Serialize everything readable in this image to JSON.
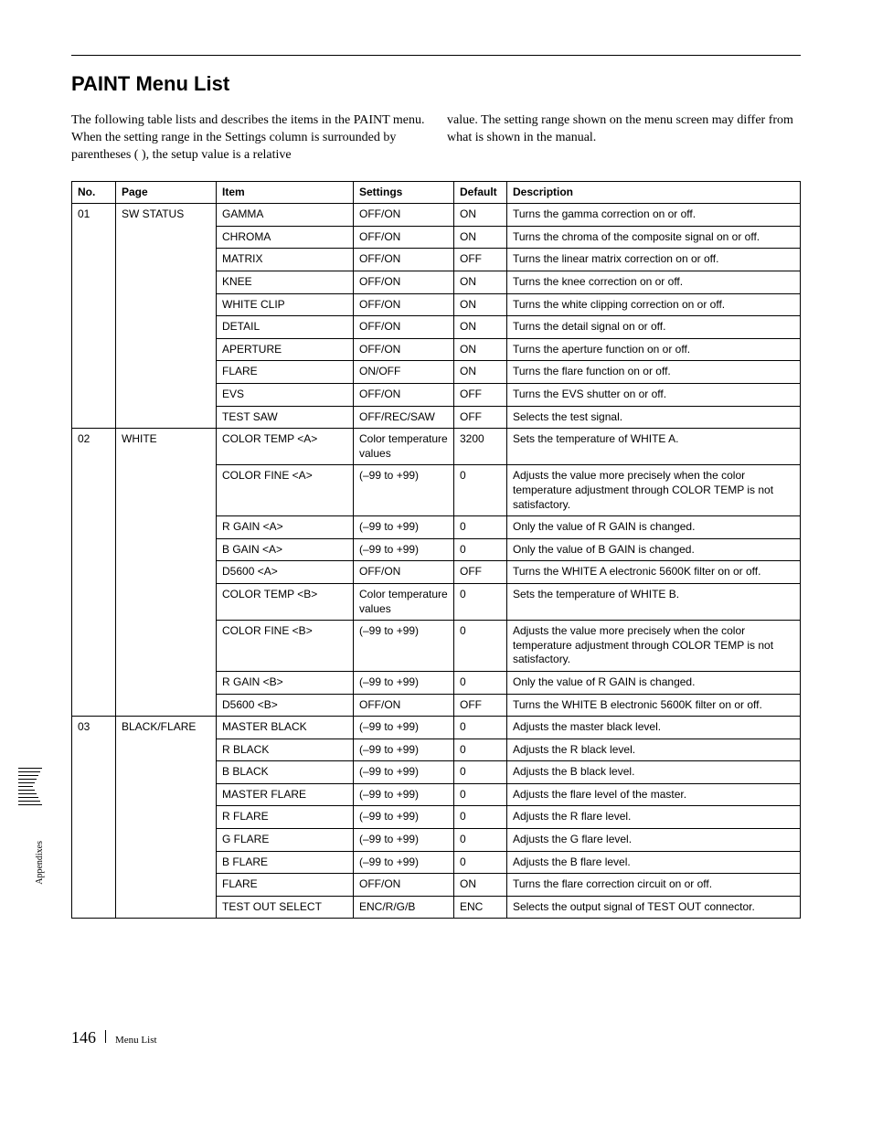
{
  "title": "PAINT Menu List",
  "intro": {
    "left": "The following table lists and describes the items in the PAINT menu.\nWhen the setting range in the Settings column is surrounded by parentheses ( ), the setup value is a relative",
    "right": "value. The setting range shown on the menu screen may differ from what is shown in the manual."
  },
  "headers": [
    "No.",
    "Page",
    "Item",
    "Settings",
    "Default",
    "Description"
  ],
  "groups": [
    {
      "no": "01",
      "page": "SW STATUS",
      "rows": [
        {
          "item": "GAMMA",
          "settings": "OFF/ON",
          "default": "ON",
          "desc": "Turns the gamma correction on or off."
        },
        {
          "item": "CHROMA",
          "settings": "OFF/ON",
          "default": "ON",
          "desc": "Turns the chroma of the composite signal on or off."
        },
        {
          "item": "MATRIX",
          "settings": "OFF/ON",
          "default": "OFF",
          "desc": "Turns the linear matrix correction on or off."
        },
        {
          "item": "KNEE",
          "settings": "OFF/ON",
          "default": "ON",
          "desc": "Turns the knee correction on or off."
        },
        {
          "item": "WHITE CLIP",
          "settings": "OFF/ON",
          "default": "ON",
          "desc": "Turns the white clipping correction on or off."
        },
        {
          "item": "DETAIL",
          "settings": "OFF/ON",
          "default": "ON",
          "desc": "Turns the detail signal on or off."
        },
        {
          "item": "APERTURE",
          "settings": "OFF/ON",
          "default": "ON",
          "desc": "Turns the aperture function on or off."
        },
        {
          "item": "FLARE",
          "settings": "ON/OFF",
          "default": "ON",
          "desc": "Turns the flare function on or off."
        },
        {
          "item": "EVS",
          "settings": "OFF/ON",
          "default": "OFF",
          "desc": "Turns the EVS shutter on or off."
        },
        {
          "item": "TEST SAW",
          "settings": "OFF/REC/SAW",
          "default": "OFF",
          "desc": "Selects the test signal."
        }
      ]
    },
    {
      "no": "02",
      "page": "WHITE",
      "rows": [
        {
          "item": "COLOR TEMP <A>",
          "settings": "Color temperature values",
          "default": "3200",
          "desc": "Sets the temperature of WHITE A."
        },
        {
          "item": "COLOR FINE <A>",
          "settings": "(–99 to +99)",
          "default": "0",
          "desc": "Adjusts the value more precisely when the color temperature adjustment through COLOR TEMP is not satisfactory."
        },
        {
          "item": "R GAIN <A>",
          "settings": "(–99 to +99)",
          "default": "0",
          "desc": "Only the value of R GAIN is changed."
        },
        {
          "item": "B GAIN <A>",
          "settings": "(–99 to +99)",
          "default": "0",
          "desc": "Only the value of B GAIN is changed."
        },
        {
          "item": "D5600 <A>",
          "settings": "OFF/ON",
          "default": "OFF",
          "desc": "Turns the WHITE A electronic 5600K filter on or off."
        },
        {
          "item": "COLOR TEMP <B>",
          "settings": "Color temperature values",
          "default": "0",
          "desc": "Sets the temperature of WHITE B."
        },
        {
          "item": "COLOR FINE <B>",
          "settings": "(–99 to +99)",
          "default": "0",
          "desc": "Adjusts the value more precisely when the color temperature adjustment through COLOR TEMP is not satisfactory."
        },
        {
          "item": "R GAIN <B>",
          "settings": "(–99 to +99)",
          "default": "0",
          "desc": "Only the value of R GAIN is changed."
        },
        {
          "item": "D5600 <B>",
          "settings": "OFF/ON",
          "default": "OFF",
          "desc": "Turns the WHITE B electronic 5600K filter on or off."
        }
      ]
    },
    {
      "no": "03",
      "page": "BLACK/FLARE",
      "rows": [
        {
          "item": "MASTER BLACK",
          "settings": "(–99 to +99)",
          "default": "0",
          "desc": "Adjusts the master black level."
        },
        {
          "item": "R BLACK",
          "settings": "(–99 to +99)",
          "default": "0",
          "desc": "Adjusts the R black level."
        },
        {
          "item": "B BLACK",
          "settings": "(–99 to +99)",
          "default": "0",
          "desc": "Adjusts the B black level."
        },
        {
          "item": "MASTER FLARE",
          "settings": "(–99 to +99)",
          "default": "0",
          "desc": "Adjusts the flare level of the master."
        },
        {
          "item": "R FLARE",
          "settings": "(–99 to +99)",
          "default": "0",
          "desc": "Adjusts the R flare level."
        },
        {
          "item": "G FLARE",
          "settings": "(–99 to +99)",
          "default": "0",
          "desc": "Adjusts the G flare level."
        },
        {
          "item": "B FLARE",
          "settings": "(–99 to +99)",
          "default": "0",
          "desc": "Adjusts the B flare level."
        },
        {
          "item": "FLARE",
          "settings": "OFF/ON",
          "default": "ON",
          "desc": "Turns the flare correction circuit on or off."
        },
        {
          "item": "TEST OUT SELECT",
          "settings": "ENC/R/G/B",
          "default": "ENC",
          "desc": "Selects the output signal of TEST OUT connector."
        }
      ]
    }
  ],
  "side_label": "Appendixes",
  "footer": {
    "page_number": "146",
    "section": "Menu List"
  }
}
